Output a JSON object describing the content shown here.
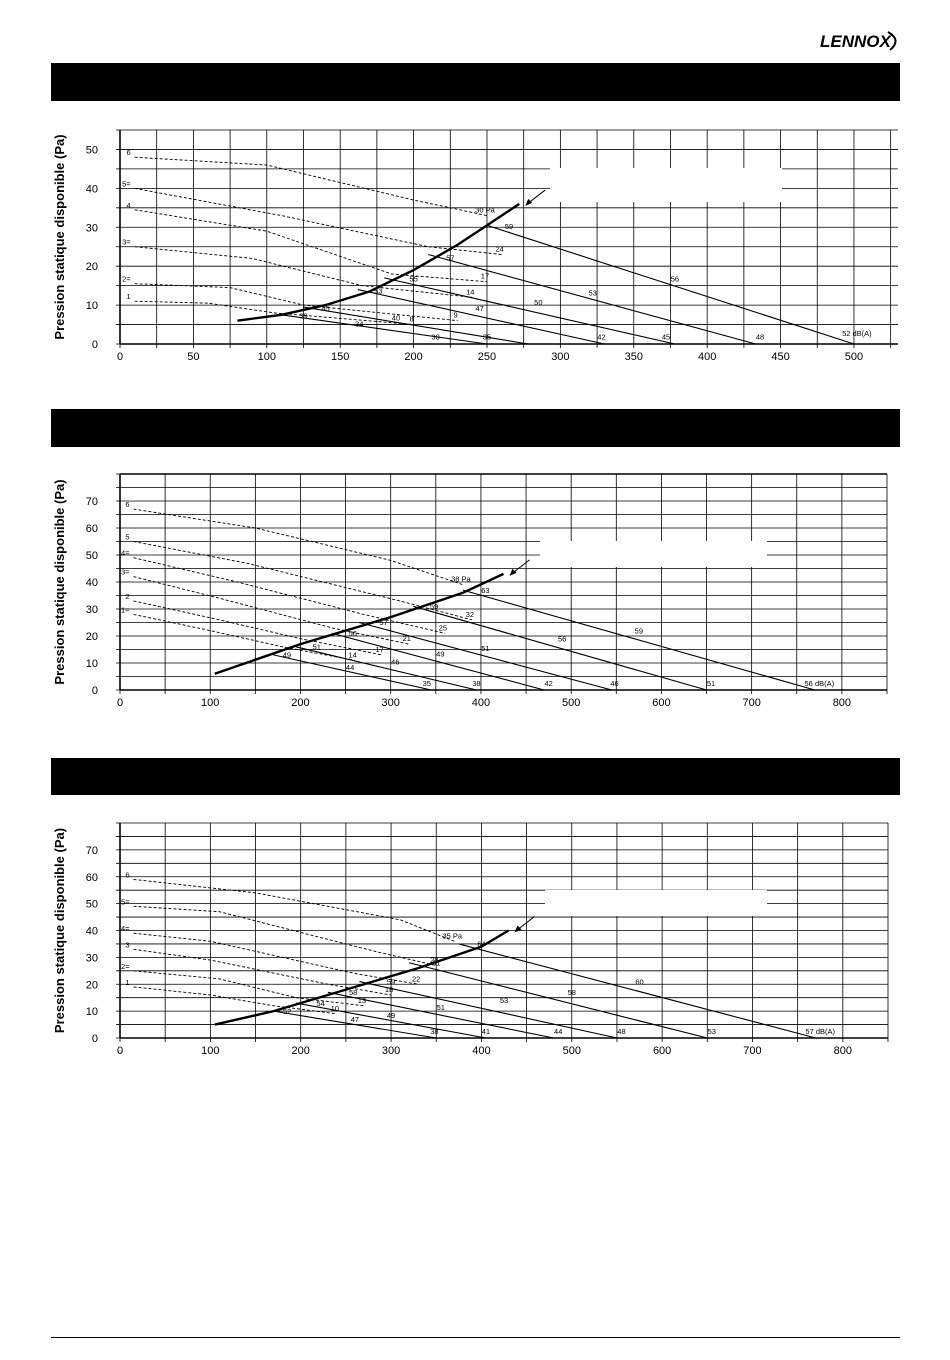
{
  "brand": {
    "name": "LENNOX"
  },
  "chart_data": [
    {
      "type": "line",
      "ylabel": "Pression statique disponible (Pa)",
      "xlim": [
        0,
        530
      ],
      "ylim": [
        0,
        55
      ],
      "xticks": [
        0,
        50,
        100,
        150,
        200,
        250,
        300,
        350,
        400,
        450,
        500
      ],
      "yticks": [
        0,
        10,
        20,
        30,
        40,
        50
      ],
      "grid": true,
      "speed_curves": [
        {
          "label": "1",
          "points": [
            [
              10,
              11
            ],
            [
              60,
              10.5
            ],
            [
              105,
              8
            ],
            [
              200,
              5
            ]
          ],
          "level_label": "8"
        },
        {
          "label": "2=",
          "points": [
            [
              10,
              15.5
            ],
            [
              75,
              14.5
            ],
            [
              125,
              10
            ],
            [
              230,
              6
            ]
          ],
          "level_label": "9"
        },
        {
          "label": "3=",
          "points": [
            [
              10,
              25
            ],
            [
              90,
              22
            ],
            [
              165,
              15
            ],
            [
              240,
              12
            ]
          ],
          "level_label": "14"
        },
        {
          "label": "4",
          "points": [
            [
              10,
              34.5
            ],
            [
              100,
              29
            ],
            [
              185,
              18
            ],
            [
              250,
              16
            ]
          ],
          "level_label": "17"
        },
        {
          "label": "5=",
          "points": [
            [
              10,
              40
            ],
            [
              110,
              33
            ],
            [
              210,
              25
            ],
            [
              260,
              23
            ]
          ],
          "level_label": "24"
        },
        {
          "label": "6",
          "points": [
            [
              10,
              48
            ],
            [
              100,
              46
            ],
            [
              200,
              37
            ],
            [
              250,
              33
            ]
          ],
          "level_label": "30 Pa"
        }
      ],
      "system_curve": [
        [
          80,
          6
        ],
        [
          110,
          7.5
        ],
        [
          140,
          10
        ],
        [
          170,
          13.5
        ],
        [
          200,
          19
        ],
        [
          230,
          25.5
        ],
        [
          250,
          30.5
        ],
        [
          272,
          36
        ]
      ],
      "noise_lines": [
        {
          "points": [
            [
              110,
              7.5
            ],
            [
              250,
              0
            ]
          ],
          "labels": [
            {
              "text": "39",
              "x": 125,
              "y": 6.5
            },
            {
              "text": "34",
              "x": 163,
              "y": 4.5
            },
            {
              "text": "30",
              "x": 215,
              "y": 1.2
            }
          ]
        },
        {
          "points": [
            [
              125,
              9.5
            ],
            [
              278,
              0
            ]
          ],
          "labels": [
            {
              "text": "45",
              "x": 140,
              "y": 8.5
            },
            {
              "text": "40",
              "x": 188,
              "y": 6
            },
            {
              "text": "35",
              "x": 250,
              "y": 1.2
            }
          ]
        },
        {
          "points": [
            [
              162,
              14
            ],
            [
              330,
              0
            ]
          ],
          "labels": [
            {
              "text": "53",
              "x": 176,
              "y": 13
            },
            {
              "text": "47",
              "x": 245,
              "y": 8.5
            },
            {
              "text": "42",
              "x": 328,
              "y": 1.2
            }
          ]
        },
        {
          "points": [
            [
              180,
              17
            ],
            [
              378,
              0
            ]
          ],
          "labels": [
            {
              "text": "55",
              "x": 200,
              "y": 16
            },
            {
              "text": "50",
              "x": 285,
              "y": 10
            },
            {
              "text": "45",
              "x": 372,
              "y": 1.2
            }
          ]
        },
        {
          "points": [
            [
              210,
              23
            ],
            [
              433,
              0
            ]
          ],
          "labels": [
            {
              "text": "57",
              "x": 225,
              "y": 21.5
            },
            {
              "text": "53",
              "x": 322,
              "y": 12.5
            },
            {
              "text": "48",
              "x": 436,
              "y": 1.2
            }
          ]
        },
        {
          "points": [
            [
              250,
              30.5
            ],
            [
              500,
              0
            ]
          ],
          "labels": [
            {
              "text": "59",
              "x": 265,
              "y": 29.5
            },
            {
              "text": "56",
              "x": 378,
              "y": 16
            },
            {
              "text": "52 dB(A)",
              "x": 502,
              "y": 2
            }
          ]
        }
      ]
    },
    {
      "type": "line",
      "ylabel": "Pression statique disponible (Pa)",
      "xlim": [
        0,
        850
      ],
      "ylim": [
        0,
        80
      ],
      "xticks": [
        0,
        100,
        200,
        300,
        400,
        500,
        600,
        700,
        800
      ],
      "yticks": [
        0,
        10,
        20,
        30,
        40,
        50,
        60,
        70
      ],
      "grid": true,
      "speed_curves": [
        {
          "label": "1=",
          "points": [
            [
              15,
              28
            ],
            [
              100,
              22
            ],
            [
              180,
              16
            ],
            [
              260,
              11
            ]
          ],
          "level_label": "14"
        },
        {
          "label": "2",
          "points": [
            [
              15,
              33
            ],
            [
              110,
              26
            ],
            [
              200,
              19
            ],
            [
              290,
              13
            ]
          ],
          "level_label": "17"
        },
        {
          "label": "3=",
          "points": [
            [
              15,
              42
            ],
            [
              110,
              34
            ],
            [
              235,
              23
            ],
            [
              320,
              17
            ]
          ],
          "level_label": "21"
        },
        {
          "label": "4=",
          "points": [
            [
              15,
              49
            ],
            [
              130,
              40
            ],
            [
              270,
              28
            ],
            [
              360,
              21
            ]
          ],
          "level_label": "25"
        },
        {
          "label": "5",
          "points": [
            [
              15,
              55
            ],
            [
              140,
              47
            ],
            [
              310,
              33
            ],
            [
              390,
              26
            ]
          ],
          "level_label": "32"
        },
        {
          "label": "6",
          "points": [
            [
              15,
              67
            ],
            [
              150,
              60
            ],
            [
              300,
              48
            ],
            [
              380,
              39
            ]
          ],
          "level_label": "38 Pa"
        }
      ],
      "system_curve": [
        [
          105,
          6
        ],
        [
          200,
          17
        ],
        [
          300,
          27
        ],
        [
          380,
          36
        ],
        [
          425,
          43
        ]
      ],
      "noise_lines": [
        {
          "points": [
            [
              170,
              13
            ],
            [
              345,
              0
            ]
          ],
          "labels": [
            {
              "text": "49",
              "x": 185,
              "y": 12
            },
            {
              "text": "44",
              "x": 255,
              "y": 7.5
            },
            {
              "text": "35",
              "x": 340,
              "y": 1.5
            }
          ]
        },
        {
          "points": [
            [
              195,
              16
            ],
            [
              395,
              0
            ]
          ],
          "labels": [
            {
              "text": "51",
              "x": 218,
              "y": 15
            },
            {
              "text": "46",
              "x": 305,
              "y": 9.5
            },
            {
              "text": "38",
              "x": 395,
              "y": 1.5
            }
          ]
        },
        {
          "points": [
            [
              235,
              21
            ],
            [
              470,
              0
            ]
          ],
          "labels": [
            {
              "text": "56",
              "x": 258,
              "y": 20
            },
            {
              "text": "49",
              "x": 355,
              "y": 12.5
            },
            {
              "text": "42",
              "x": 475,
              "y": 1.5
            }
          ]
        },
        {
          "points": [
            [
              265,
              25
            ],
            [
              545,
              0
            ]
          ],
          "labels": [
            {
              "text": "57",
              "x": 292,
              "y": 24
            },
            {
              "text": "51",
              "x": 405,
              "y": 14.5
            },
            {
              "text": "46",
              "x": 548,
              "y": 1.5
            }
          ]
        },
        {
          "points": [
            [
              325,
              31
            ],
            [
              650,
              0
            ]
          ],
          "labels": [
            {
              "text": "59",
              "x": 348,
              "y": 30
            },
            {
              "text": "56",
              "x": 490,
              "y": 18
            },
            {
              "text": "51",
              "x": 655,
              "y": 1.5
            }
          ]
        },
        {
          "points": [
            [
              380,
              37
            ],
            [
              770,
              0
            ]
          ],
          "labels": [
            {
              "text": "63",
              "x": 405,
              "y": 36
            },
            {
              "text": "59",
              "x": 575,
              "y": 21
            },
            {
              "text": "56 dB(A)",
              "x": 775,
              "y": 1.5
            }
          ]
        }
      ]
    },
    {
      "type": "line",
      "ylabel": "Pression statique disponible (Pa)",
      "xlim": [
        0,
        850
      ],
      "ylim": [
        0,
        80
      ],
      "xticks": [
        0,
        100,
        200,
        300,
        400,
        500,
        600,
        700,
        800
      ],
      "yticks": [
        0,
        10,
        20,
        30,
        40,
        50,
        60,
        70
      ],
      "grid": true,
      "speed_curves": [
        {
          "label": "1",
          "points": [
            [
              15,
              19
            ],
            [
              100,
              16
            ],
            [
              170,
              12
            ],
            [
              240,
              9
            ]
          ],
          "level_label": "10"
        },
        {
          "label": "2=",
          "points": [
            [
              15,
              25
            ],
            [
              110,
              22
            ],
            [
              195,
              15
            ],
            [
              270,
              12
            ]
          ],
          "level_label": "13"
        },
        {
          "label": "3",
          "points": [
            [
              15,
              33
            ],
            [
              100,
              29
            ],
            [
              230,
              20
            ],
            [
              300,
              16
            ]
          ],
          "level_label": "18"
        },
        {
          "label": "4=",
          "points": [
            [
              15,
              39
            ],
            [
              100,
              36
            ],
            [
              260,
              24
            ],
            [
              330,
              20
            ]
          ],
          "level_label": "22"
        },
        {
          "label": "5=",
          "points": [
            [
              15,
              49
            ],
            [
              110,
              47
            ],
            [
              285,
              32
            ],
            [
              350,
              27
            ]
          ],
          "level_label": "28"
        },
        {
          "label": "6",
          "points": [
            [
              15,
              59
            ],
            [
              150,
              54
            ],
            [
              310,
              44
            ],
            [
              370,
              36
            ]
          ],
          "level_label": "35 Pa"
        }
      ],
      "system_curve": [
        [
          105,
          5
        ],
        [
          170,
          10
        ],
        [
          250,
          18
        ],
        [
          330,
          26
        ],
        [
          400,
          34
        ],
        [
          430,
          40
        ]
      ],
      "noise_lines": [
        {
          "points": [
            [
              170,
              10
            ],
            [
              350,
              0
            ]
          ],
          "labels": [
            {
              "text": "52",
              "x": 185,
              "y": 9
            },
            {
              "text": "47",
              "x": 260,
              "y": 6
            },
            {
              "text": "38",
              "x": 348,
              "y": 1.5
            }
          ]
        },
        {
          "points": [
            [
              195,
              13
            ],
            [
              405,
              0
            ]
          ],
          "labels": [
            {
              "text": "54",
              "x": 222,
              "y": 12
            },
            {
              "text": "49",
              "x": 300,
              "y": 7.5
            },
            {
              "text": "41",
              "x": 405,
              "y": 1.5
            }
          ]
        },
        {
          "points": [
            [
              230,
              17
            ],
            [
              480,
              0
            ]
          ],
          "labels": [
            {
              "text": "58",
              "x": 258,
              "y": 16
            },
            {
              "text": "51",
              "x": 355,
              "y": 10.5
            },
            {
              "text": "44",
              "x": 485,
              "y": 1.5
            }
          ]
        },
        {
          "points": [
            [
              265,
              21
            ],
            [
              550,
              0
            ]
          ],
          "labels": [
            {
              "text": "59",
              "x": 300,
              "y": 20
            },
            {
              "text": "53",
              "x": 425,
              "y": 13
            },
            {
              "text": "48",
              "x": 555,
              "y": 1.5
            }
          ]
        },
        {
          "points": [
            [
              320,
              28
            ],
            [
              650,
              0
            ]
          ],
          "labels": [
            {
              "text": "61",
              "x": 350,
              "y": 27
            },
            {
              "text": "58",
              "x": 500,
              "y": 16
            },
            {
              "text": "53",
              "x": 655,
              "y": 1.5
            }
          ]
        },
        {
          "points": [
            [
              375,
              35
            ],
            [
              770,
              0
            ]
          ],
          "labels": [
            {
              "text": "64",
              "x": 400,
              "y": 34
            },
            {
              "text": "60",
              "x": 575,
              "y": 20
            },
            {
              "text": "57 dB(A)",
              "x": 775,
              "y": 1.5
            }
          ]
        }
      ]
    }
  ]
}
